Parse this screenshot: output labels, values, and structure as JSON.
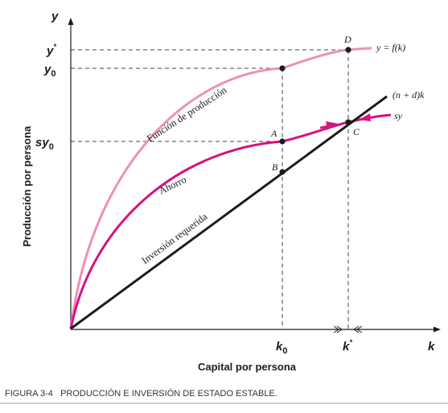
{
  "chart_data": {
    "type": "line",
    "title": "",
    "xlabel": "Capital por persona",
    "ylabel": "Producción por persona",
    "x_axis_end_label": "k",
    "y_axis_end_label": "y",
    "x_ticks": {
      "k0": "k",
      "k0_sub": "0",
      "kstar": "k",
      "kstar_sup": "*"
    },
    "y_ticks": {
      "ystar": "y",
      "ystar_sup": "*",
      "y0": "y",
      "y0_sub": "0",
      "sy0": "sy",
      "sy0_sub": "0"
    },
    "series": [
      {
        "key": "output",
        "name": "Función de producción",
        "end_label": "y = f(k)",
        "color": "#ee8fb8"
      },
      {
        "key": "saving",
        "name": "Ahorro",
        "end_label": "sy",
        "color": "#d6137f"
      },
      {
        "key": "investment",
        "name": "Inversión requerida",
        "end_label": "(n + d)k",
        "color": "#1b1b1b"
      }
    ],
    "points": {
      "A": "A",
      "B": "B",
      "C": "C",
      "D": "D"
    },
    "grid": false
  },
  "caption": "FIGURA 3-4   PRODUCCIÓN E INVERSIÓN DE ESTADO ESTABLE."
}
